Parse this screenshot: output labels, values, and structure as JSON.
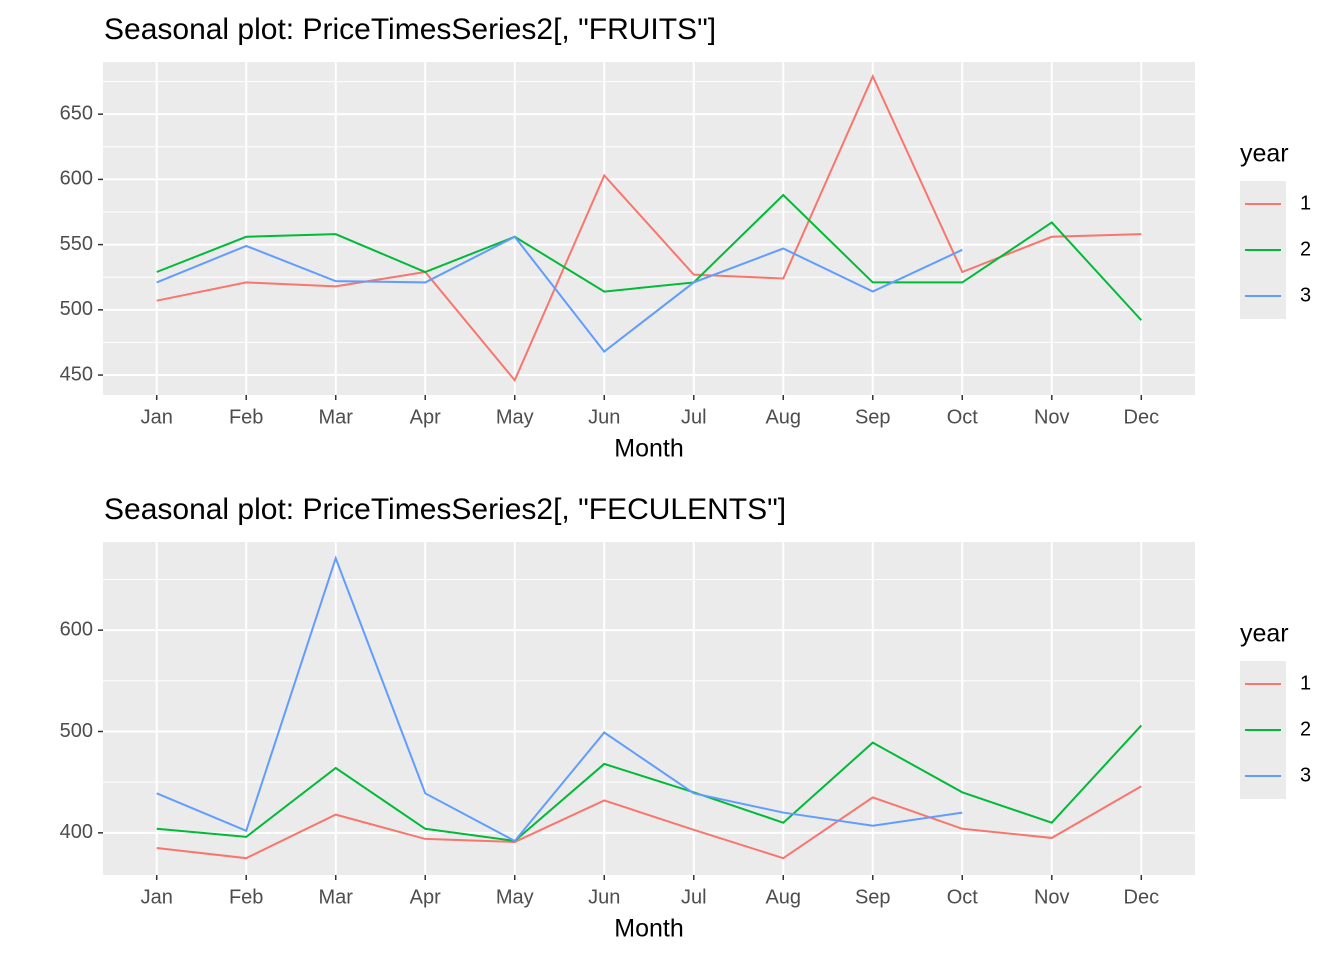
{
  "chart_data": [
    {
      "type": "line",
      "title": "Seasonal plot: PriceTimesSeries2[, \"FRUITS\"]",
      "x_label": "Month",
      "legend_title": "year",
      "categories": [
        "Jan",
        "Feb",
        "Mar",
        "Apr",
        "May",
        "Jun",
        "Jul",
        "Aug",
        "Sep",
        "Oct",
        "Nov",
        "Dec"
      ],
      "ylim": [
        434.7,
        690
      ],
      "yticks": [
        450,
        500,
        550,
        600,
        650
      ],
      "grid": true,
      "legend": "right",
      "series": [
        {
          "name": "1",
          "color": "#F8766D",
          "values": [
            507,
            521,
            518,
            529,
            446,
            603,
            527,
            524,
            679,
            529,
            556,
            558
          ]
        },
        {
          "name": "2",
          "color": "#00BA38",
          "values": [
            529,
            556,
            558,
            529,
            556,
            514,
            521,
            588,
            521,
            521,
            567,
            492
          ]
        },
        {
          "name": "3",
          "color": "#619CFF",
          "values": [
            521,
            549,
            522,
            521,
            556,
            468,
            521,
            547,
            514,
            546,
            null,
            null
          ]
        }
      ]
    },
    {
      "type": "line",
      "title": "Seasonal plot: PriceTimesSeries2[, \"FECULENTS\"]",
      "x_label": "Month",
      "legend_title": "year",
      "categories": [
        "Jan",
        "Feb",
        "Mar",
        "Apr",
        "May",
        "Jun",
        "Jul",
        "Aug",
        "Sep",
        "Oct",
        "Nov",
        "Dec"
      ],
      "ylim": [
        358.4,
        687
      ],
      "yticks": [
        400,
        500,
        600
      ],
      "grid": true,
      "legend": "right",
      "series": [
        {
          "name": "1",
          "color": "#F8766D",
          "values": [
            385,
            375,
            418,
            394,
            391,
            432,
            403,
            375,
            435,
            404,
            395,
            446
          ]
        },
        {
          "name": "2",
          "color": "#00BA38",
          "values": [
            404,
            396,
            464,
            404,
            392,
            468,
            440,
            410,
            489,
            440,
            410,
            506
          ]
        },
        {
          "name": "3",
          "color": "#619CFF",
          "values": [
            439,
            402,
            671,
            439,
            392,
            499,
            439,
            420,
            407,
            420,
            null,
            null
          ]
        }
      ]
    }
  ]
}
